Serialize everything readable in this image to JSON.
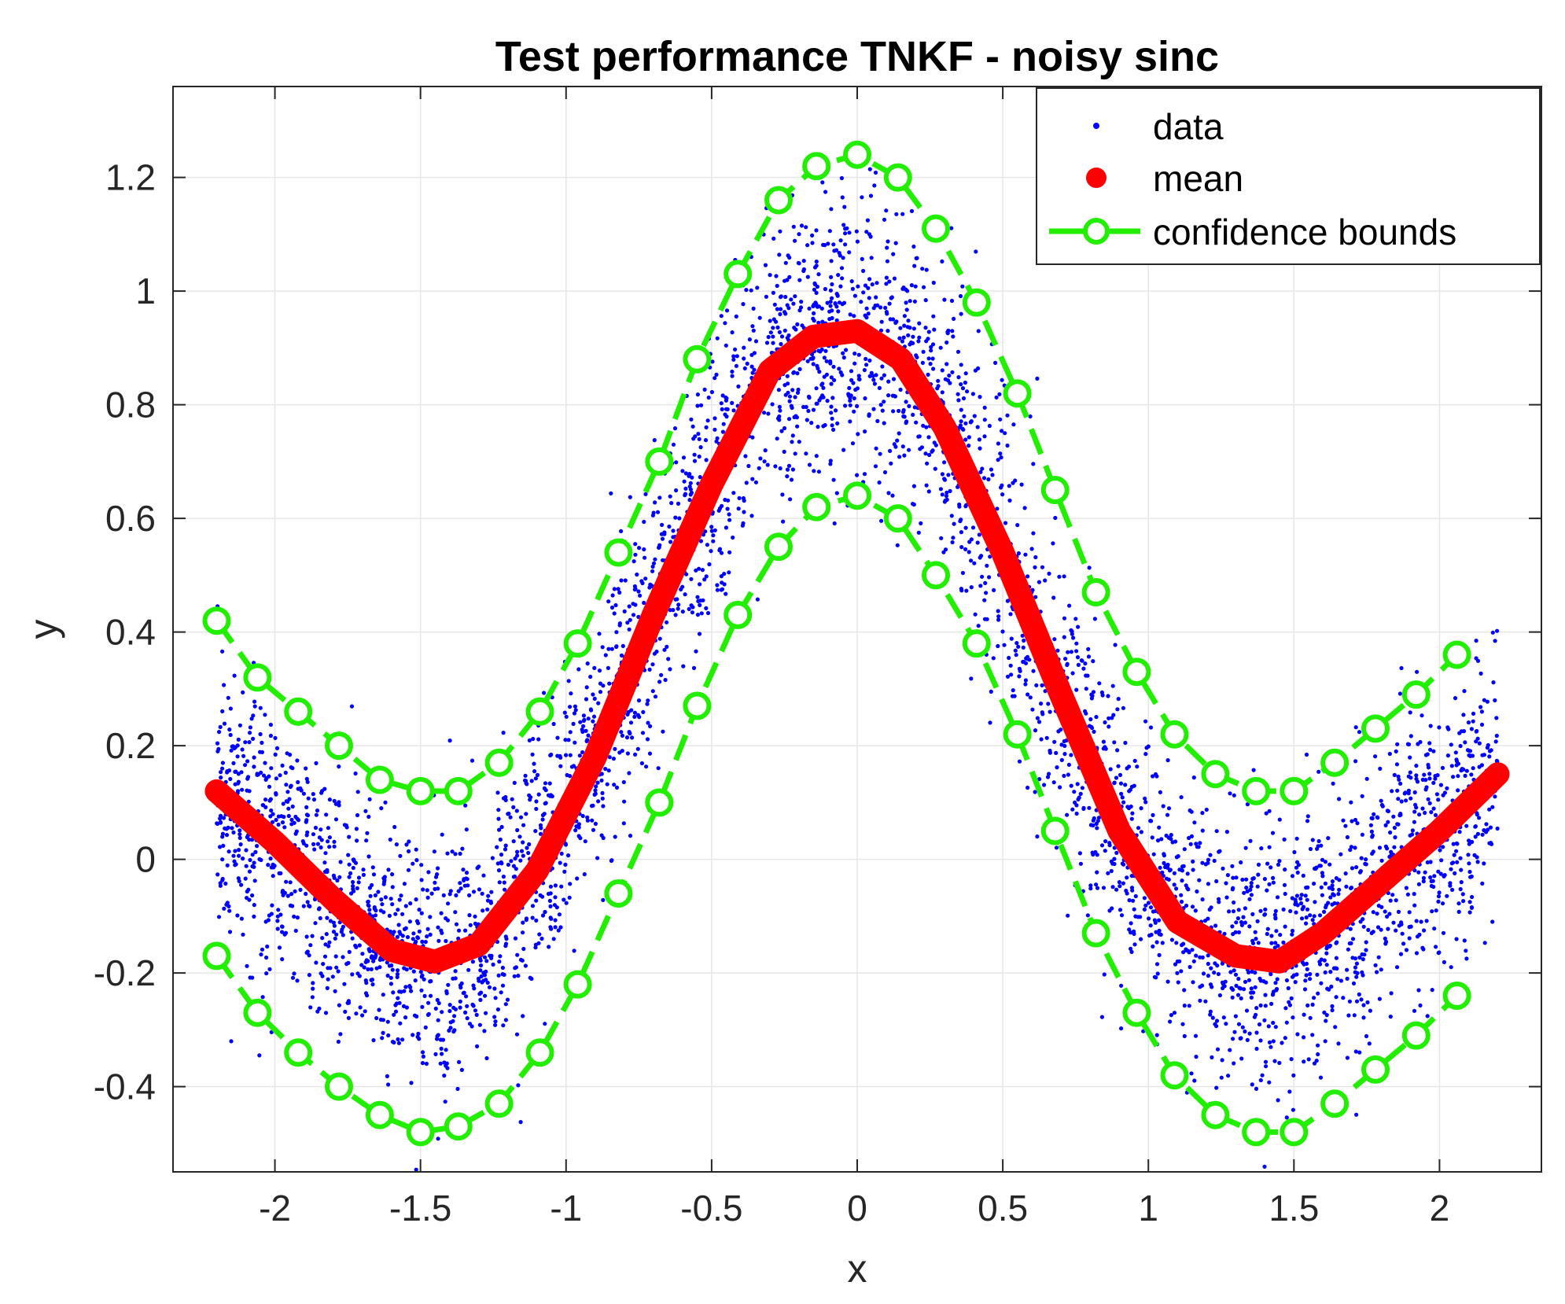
{
  "chart_data": {
    "type": "scatter",
    "title": "Test performance TNKF - noisy sinc",
    "xlabel": "x",
    "ylabel": "y",
    "xlim": [
      -2.35,
      2.35
    ],
    "ylim": [
      -0.55,
      1.36
    ],
    "xticks": [
      -2,
      -1.5,
      -1,
      -0.5,
      0,
      0.5,
      1,
      1.5,
      2
    ],
    "xtick_labels": [
      "-2",
      "-1.5",
      "-1",
      "-0.5",
      "0",
      "0.5",
      "1",
      "1.5",
      "2"
    ],
    "yticks": [
      -0.4,
      -0.2,
      0,
      0.2,
      0.4,
      0.6,
      0.8,
      1,
      1.2
    ],
    "ytick_labels": [
      "-0.4",
      "-0.2",
      "0",
      "0.2",
      "0.4",
      "0.6",
      "0.8",
      "1",
      "1.2"
    ],
    "grid": true,
    "legend_position": "top-right",
    "series": [
      {
        "name": "data",
        "kind": "scatter",
        "color": "#0000ff",
        "description_of_distribution": "noisy samples of sinc around the mean curve, x in [-2.2, 2.2]",
        "x_range": [
          -2.2,
          2.2
        ],
        "noise_std": 0.12,
        "n_points": 4500
      },
      {
        "name": "mean",
        "kind": "line",
        "color": "#ff0000",
        "x": [
          -2.2,
          -2.0,
          -1.8,
          -1.6,
          -1.45,
          -1.3,
          -1.1,
          -0.9,
          -0.7,
          -0.5,
          -0.3,
          -0.15,
          0.0,
          0.15,
          0.3,
          0.5,
          0.7,
          0.9,
          1.1,
          1.3,
          1.45,
          1.6,
          1.8,
          2.0,
          2.2
        ],
        "y": [
          0.12,
          0.03,
          -0.07,
          -0.16,
          -0.18,
          -0.15,
          -0.02,
          0.18,
          0.43,
          0.66,
          0.86,
          0.92,
          0.93,
          0.88,
          0.76,
          0.54,
          0.29,
          0.05,
          -0.11,
          -0.17,
          -0.18,
          -0.13,
          -0.04,
          0.05,
          0.15
        ]
      },
      {
        "name": "confidence bounds",
        "kind": "line-markers",
        "color": "#22ee00",
        "upper_x": [
          -2.2,
          -2.06,
          -1.92,
          -1.78,
          -1.64,
          -1.5,
          -1.37,
          -1.23,
          -1.09,
          -0.96,
          -0.82,
          -0.68,
          -0.55,
          -0.41,
          -0.27,
          -0.14,
          0.0,
          0.14,
          0.27,
          0.41,
          0.55,
          0.68,
          0.82,
          0.96,
          1.09,
          1.23,
          1.37,
          1.5,
          1.64,
          1.78,
          1.92,
          2.06
        ],
        "upper_y": [
          0.42,
          0.32,
          0.26,
          0.2,
          0.14,
          0.12,
          0.12,
          0.17,
          0.26,
          0.38,
          0.54,
          0.7,
          0.88,
          1.03,
          1.16,
          1.22,
          1.24,
          1.2,
          1.11,
          0.98,
          0.82,
          0.65,
          0.47,
          0.33,
          0.22,
          0.15,
          0.12,
          0.12,
          0.17,
          0.23,
          0.29,
          0.36
        ],
        "lower_x": [
          -2.2,
          -2.06,
          -1.92,
          -1.78,
          -1.64,
          -1.5,
          -1.37,
          -1.23,
          -1.09,
          -0.96,
          -0.82,
          -0.68,
          -0.55,
          -0.41,
          -0.27,
          -0.14,
          0.0,
          0.14,
          0.27,
          0.41,
          0.55,
          0.68,
          0.82,
          0.96,
          1.09,
          1.23,
          1.37,
          1.5,
          1.64,
          1.78,
          1.92,
          2.06
        ],
        "lower_y": [
          -0.17,
          -0.27,
          -0.34,
          -0.4,
          -0.45,
          -0.48,
          -0.47,
          -0.43,
          -0.34,
          -0.22,
          -0.06,
          0.1,
          0.27,
          0.43,
          0.55,
          0.62,
          0.64,
          0.6,
          0.5,
          0.38,
          0.22,
          0.05,
          -0.13,
          -0.27,
          -0.38,
          -0.45,
          -0.48,
          -0.48,
          -0.43,
          -0.37,
          -0.31,
          -0.24
        ]
      }
    ]
  }
}
